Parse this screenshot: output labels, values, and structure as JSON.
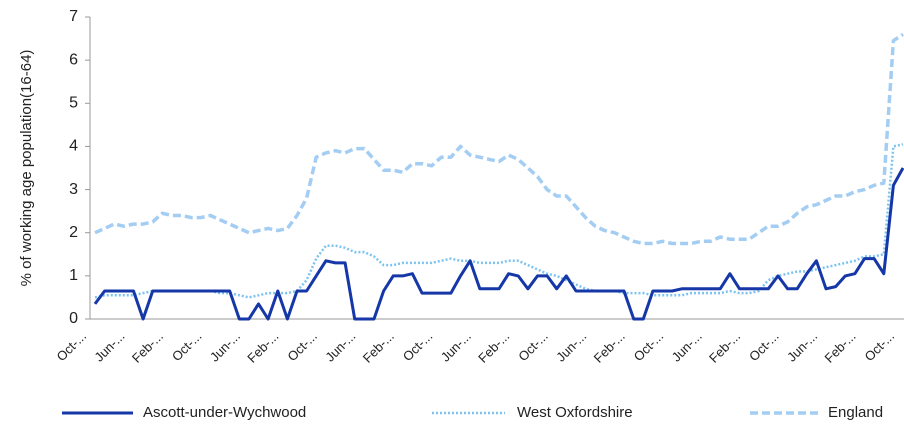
{
  "chart_data": {
    "type": "line",
    "y_label": "% of working age population(16-64)",
    "categories": [
      "Oct-...",
      null,
      null,
      null,
      "Jun-...",
      null,
      null,
      null,
      "Feb-...",
      null,
      null,
      null,
      "Oct-...",
      null,
      null,
      null,
      "Jun-...",
      null,
      null,
      null,
      "Feb-...",
      null,
      null,
      null,
      "Oct-...",
      null,
      null,
      null,
      "Jun-...",
      null,
      null,
      null,
      "Feb-...",
      null,
      null,
      null,
      "Oct-...",
      null,
      null,
      null,
      "Jun-...",
      null,
      null,
      null,
      "Feb-...",
      null,
      null,
      null,
      "Oct-...",
      null,
      null,
      null,
      "Jun-...",
      null,
      null,
      null,
      "Feb-...",
      null,
      null,
      null,
      "Oct-...",
      null,
      null,
      null,
      "Jun-...",
      null,
      null,
      null,
      "Feb-...",
      null,
      null,
      null,
      "Oct-...",
      null,
      null,
      null,
      "Jun-...",
      null,
      null,
      null,
      "Feb-...",
      null,
      null,
      null,
      "Oct-..."
    ],
    "series": [
      {
        "name": "Ascott-under-Wychwood",
        "color": "#1537a8",
        "style": "solid",
        "values": [
          0.35,
          0.65,
          0.65,
          0.65,
          0.65,
          0,
          0.65,
          0.65,
          0.65,
          0.65,
          0.65,
          0.65,
          0.65,
          0.65,
          0.65,
          0,
          0,
          0.35,
          0,
          0.65,
          0,
          0.65,
          0.65,
          1.0,
          1.35,
          1.3,
          1.3,
          0,
          0,
          0,
          0.65,
          1.0,
          1.0,
          1.05,
          0.6,
          0.6,
          0.6,
          0.6,
          1.0,
          1.35,
          0.7,
          0.7,
          0.7,
          1.05,
          1.0,
          0.7,
          1.0,
          1.0,
          0.7,
          1.0,
          0.65,
          0.65,
          0.65,
          0.65,
          0.65,
          0.65,
          0,
          0,
          0.65,
          0.65,
          0.65,
          0.7,
          0.7,
          0.7,
          0.7,
          0.7,
          1.05,
          0.7,
          0.7,
          0.7,
          0.7,
          1.0,
          0.7,
          0.7,
          1.05,
          1.35,
          0.7,
          0.75,
          1.0,
          1.05,
          1.4,
          1.4,
          1.05,
          3.1,
          3.5
        ]
      },
      {
        "name": "West Oxfordshire",
        "color": "#7cc3ef",
        "style": "dotted",
        "values": [
          0.5,
          0.55,
          0.55,
          0.55,
          0.55,
          0.6,
          0.65,
          0.65,
          0.65,
          0.65,
          0.65,
          0.65,
          0.65,
          0.6,
          0.6,
          0.55,
          0.5,
          0.55,
          0.6,
          0.6,
          0.6,
          0.65,
          0.9,
          1.4,
          1.7,
          1.7,
          1.65,
          1.55,
          1.55,
          1.45,
          1.25,
          1.25,
          1.3,
          1.3,
          1.3,
          1.3,
          1.35,
          1.4,
          1.35,
          1.35,
          1.3,
          1.3,
          1.3,
          1.35,
          1.35,
          1.25,
          1.15,
          1.05,
          1.0,
          0.9,
          0.8,
          0.7,
          0.65,
          0.65,
          0.65,
          0.6,
          0.6,
          0.6,
          0.55,
          0.55,
          0.55,
          0.55,
          0.6,
          0.6,
          0.6,
          0.6,
          0.65,
          0.6,
          0.6,
          0.65,
          0.9,
          1.0,
          1.05,
          1.1,
          1.1,
          1.15,
          1.2,
          1.25,
          1.3,
          1.35,
          1.45,
          1.45,
          1.5,
          4.0,
          4.05
        ]
      },
      {
        "name": "England",
        "color": "#a3cdf3",
        "style": "dashed",
        "values": [
          2.0,
          2.1,
          2.2,
          2.15,
          2.2,
          2.2,
          2.25,
          2.45,
          2.4,
          2.4,
          2.35,
          2.35,
          2.4,
          2.3,
          2.2,
          2.1,
          2.0,
          2.05,
          2.1,
          2.05,
          2.1,
          2.4,
          2.8,
          3.75,
          3.85,
          3.9,
          3.85,
          3.95,
          3.95,
          3.7,
          3.45,
          3.45,
          3.4,
          3.6,
          3.6,
          3.55,
          3.75,
          3.75,
          4.0,
          3.8,
          3.75,
          3.7,
          3.65,
          3.8,
          3.7,
          3.5,
          3.3,
          3.0,
          2.85,
          2.85,
          2.6,
          2.35,
          2.15,
          2.05,
          2.0,
          1.9,
          1.8,
          1.75,
          1.75,
          1.8,
          1.75,
          1.75,
          1.75,
          1.8,
          1.8,
          1.9,
          1.85,
          1.85,
          1.85,
          2.0,
          2.15,
          2.15,
          2.25,
          2.45,
          2.6,
          2.65,
          2.75,
          2.85,
          2.85,
          2.95,
          3.0,
          3.1,
          3.15,
          6.45,
          6.6
        ]
      }
    ],
    "ylim": [
      0,
      7
    ],
    "yticks": [
      0,
      1,
      2,
      3,
      4,
      5,
      6,
      7
    ],
    "grid": false,
    "legend": "bottom"
  }
}
